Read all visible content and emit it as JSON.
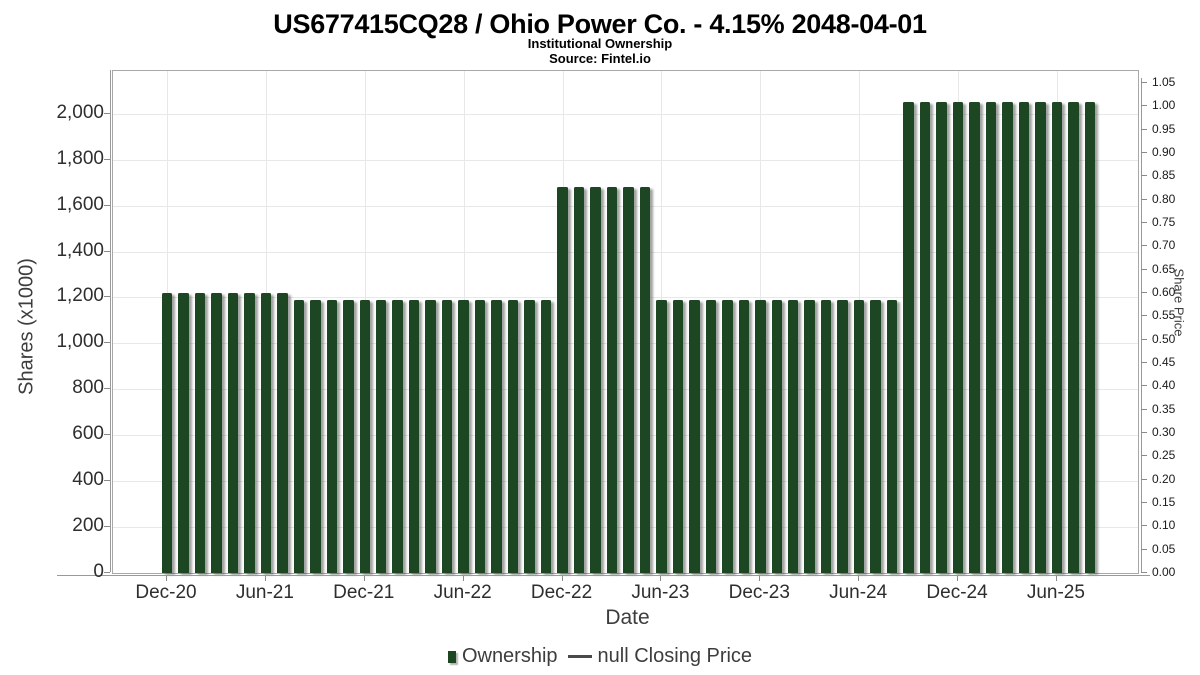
{
  "header": {
    "title": "US677415CQ28 / Ohio Power Co. - 4.15% 2048-04-01",
    "subtitle": "Institutional Ownership",
    "source": "Source: Fintel.io"
  },
  "legend": {
    "ownership_label": "Ownership",
    "price_label": "null Closing Price"
  },
  "colors": {
    "bar": "#1d4722",
    "grid": "#e8e8e8",
    "axis": "#999999",
    "legend_dash": "#4a4a4a"
  },
  "chart_data": {
    "type": "bar",
    "title": "US677415CQ28 / Ohio Power Co. - 4.15% 2048-04-01",
    "subtitle": "Institutional Ownership",
    "source": "Source: Fintel.io",
    "xlabel": "Date",
    "ylabel_left": "Shares (x1000)",
    "ylabel_right": "Share Price",
    "legend_position": "bottom",
    "grid": true,
    "y_left_range": [
      0,
      2186
    ],
    "y_right_range": [
      0,
      1.05
    ],
    "y_left_tick_labels": [
      "0",
      "200",
      "400",
      "600",
      "800",
      "1,000",
      "1,200",
      "1,400",
      "1,600",
      "1,800",
      "2,000"
    ],
    "y_left_tick_values": [
      0,
      200,
      400,
      600,
      800,
      1000,
      1200,
      1400,
      1600,
      1800,
      2000
    ],
    "y_right_tick_labels": [
      "0.00",
      "0.05",
      "0.10",
      "0.15",
      "0.20",
      "0.25",
      "0.30",
      "0.35",
      "0.40",
      "0.45",
      "0.50",
      "0.55",
      "0.60",
      "0.65",
      "0.70",
      "0.75",
      "0.80",
      "0.85",
      "0.90",
      "0.95",
      "1.00",
      "1.05"
    ],
    "x_tick_labels": [
      "Dec-20",
      "Jun-21",
      "Dec-21",
      "Jun-22",
      "Dec-22",
      "Jun-23",
      "Dec-23",
      "Jun-24",
      "Dec-24",
      "Jun-25"
    ],
    "x_tick_month_index": [
      0,
      6,
      12,
      18,
      24,
      30,
      36,
      42,
      48,
      54
    ],
    "categories": [
      "Dec-20",
      "Jan-21",
      "Feb-21",
      "Mar-21",
      "Apr-21",
      "May-21",
      "Jun-21",
      "Jul-21",
      "Aug-21",
      "Sep-21",
      "Oct-21",
      "Nov-21",
      "Dec-21",
      "Jan-22",
      "Feb-22",
      "Mar-22",
      "Apr-22",
      "May-22",
      "Jun-22",
      "Jul-22",
      "Aug-22",
      "Sep-22",
      "Oct-22",
      "Nov-22",
      "Dec-22",
      "Jan-23",
      "Feb-23",
      "Mar-23",
      "Apr-23",
      "May-23",
      "Jun-23",
      "Jul-23",
      "Aug-23",
      "Sep-23",
      "Oct-23",
      "Nov-23",
      "Dec-23",
      "Jan-24",
      "Feb-24",
      "Mar-24",
      "Apr-24",
      "May-24",
      "Jun-24",
      "Jul-24",
      "Aug-24",
      "Sep-24",
      "Oct-24",
      "Nov-24",
      "Dec-24",
      "Jan-25",
      "Feb-25",
      "Mar-25",
      "Apr-25",
      "May-25",
      "Jun-25",
      "Jul-25",
      "Aug-25"
    ],
    "series": [
      {
        "name": "Ownership",
        "color": "#1d4722",
        "values": [
          1220,
          1220,
          1220,
          1220,
          1220,
          1220,
          1220,
          1220,
          1190,
          1190,
          1190,
          1190,
          1190,
          1190,
          1190,
          1190,
          1190,
          1190,
          1190,
          1190,
          1190,
          1190,
          1190,
          1190,
          1680,
          1680,
          1680,
          1680,
          1680,
          1680,
          1190,
          1190,
          1190,
          1190,
          1190,
          1190,
          1190,
          1190,
          1190,
          1190,
          1190,
          1190,
          1190,
          1190,
          1190,
          2050,
          2050,
          2050,
          2050,
          2050,
          2050,
          2050,
          2050,
          2050,
          2050,
          2050,
          2050
        ]
      },
      {
        "name": "null Closing Price",
        "type": "line",
        "values": []
      }
    ]
  }
}
